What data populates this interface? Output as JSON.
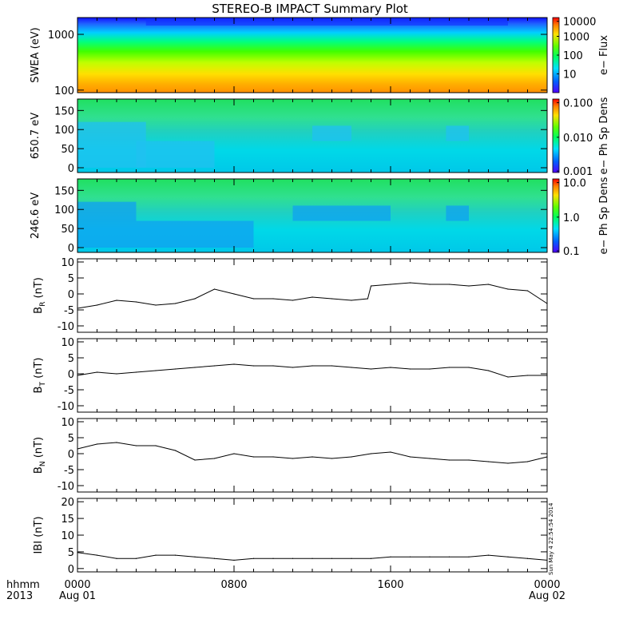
{
  "chart_data": [
    {
      "type": "heatmap",
      "title": "STEREO-B IMPACT Summary Plot",
      "ylabel": "SWEA (eV)",
      "yscale": "log",
      "ylim": [
        90,
        2000
      ],
      "yticks": [
        "1000",
        "100"
      ],
      "colorbar": {
        "label": "e− Flux",
        "scale": "log",
        "range": [
          1,
          20000
        ],
        "ticks": [
          "10000",
          "1000",
          "100",
          "10"
        ]
      },
      "rows": [
        {
          "energy": 1500,
          "flux": 3
        },
        {
          "energy": 1000,
          "flux": 25
        },
        {
          "energy": 600,
          "flux": 200
        },
        {
          "energy": 300,
          "flux": 1200
        },
        {
          "energy": 150,
          "flux": 5000
        },
        {
          "energy": 100,
          "flux": 9000
        }
      ]
    },
    {
      "type": "heatmap",
      "ylabel": "650.7 eV",
      "ylim": [
        0,
        180
      ],
      "yticks": [
        "150",
        "100",
        "50",
        "0"
      ],
      "colorbar": {
        "label": "e− Ph Sp Dens",
        "scale": "log",
        "range": [
          0.001,
          0.1
        ],
        "ticks": [
          "0.100",
          "0.010",
          "0.001"
        ]
      },
      "background": 0.01,
      "features": [
        {
          "from": "0000",
          "to": "0330",
          "pitch_min": 0,
          "pitch_max": 120,
          "value": 0.004
        },
        {
          "from": "0300",
          "to": "0700",
          "pitch_min": 0,
          "pitch_max": 70,
          "value": 0.005
        },
        {
          "from": "1200",
          "to": "1400",
          "pitch_min": 70,
          "pitch_max": 110,
          "value": 0.005
        },
        {
          "from": "1850",
          "to": "2000",
          "pitch_min": 70,
          "pitch_max": 110,
          "value": 0.004
        }
      ]
    },
    {
      "type": "heatmap",
      "ylabel": "246.6 eV",
      "ylim": [
        0,
        180
      ],
      "yticks": [
        "150",
        "100",
        "50",
        "0"
      ],
      "colorbar": {
        "label": "e− Ph Sp Dens",
        "scale": "log",
        "range": [
          0.1,
          10
        ],
        "ticks": [
          "10.0",
          "1.0",
          "0.1"
        ]
      },
      "background": 1.5,
      "features": [
        {
          "from": "0000",
          "to": "0300",
          "pitch_min": 0,
          "pitch_max": 120,
          "value": 0.5
        },
        {
          "from": "0300",
          "to": "0900",
          "pitch_min": 0,
          "pitch_max": 70,
          "value": 0.4
        },
        {
          "from": "1100",
          "to": "1600",
          "pitch_min": 70,
          "pitch_max": 110,
          "value": 0.5
        },
        {
          "from": "1850",
          "to": "2000",
          "pitch_min": 70,
          "pitch_max": 110,
          "value": 0.5
        }
      ]
    },
    {
      "type": "line",
      "ylabel": "B",
      "ylabel_sub": "R",
      "ylabel_unit": "(nT)",
      "ylim": [
        -12,
        11
      ],
      "yticks": [
        10,
        5,
        0,
        -5,
        -10
      ],
      "x": [
        "0000",
        "0100",
        "0200",
        "0300",
        "0400",
        "0500",
        "0600",
        "0700",
        "0800",
        "0900",
        "1000",
        "1100",
        "1200",
        "1300",
        "1400",
        "1450",
        "1500",
        "1600",
        "1700",
        "1800",
        "1900",
        "2000",
        "2100",
        "2200",
        "2300",
        "2400"
      ],
      "values": [
        -4.5,
        -3.5,
        -2.0,
        -2.5,
        -3.5,
        -3.0,
        -1.5,
        1.5,
        0.0,
        -1.5,
        -1.5,
        -2.0,
        -1.0,
        -1.5,
        -2.0,
        -1.5,
        2.5,
        3.0,
        3.5,
        3.0,
        3.0,
        2.5,
        3.0,
        1.5,
        1.0,
        -3.0
      ]
    },
    {
      "type": "line",
      "ylabel": "B",
      "ylabel_sub": "T",
      "ylabel_unit": "(nT)",
      "ylim": [
        -12,
        11
      ],
      "yticks": [
        10,
        5,
        0,
        -5,
        -10
      ],
      "x": [
        "0000",
        "0100",
        "0200",
        "0300",
        "0400",
        "0500",
        "0600",
        "0700",
        "0800",
        "0900",
        "1000",
        "1100",
        "1200",
        "1300",
        "1400",
        "1500",
        "1600",
        "1700",
        "1800",
        "1900",
        "2000",
        "2100",
        "2200",
        "2300",
        "2400"
      ],
      "values": [
        -0.5,
        0.5,
        0.0,
        0.5,
        1.0,
        1.5,
        2.0,
        2.5,
        3.0,
        2.5,
        2.5,
        2.0,
        2.5,
        2.5,
        2.0,
        1.5,
        2.0,
        1.5,
        1.5,
        2.0,
        2.0,
        1.0,
        -1.0,
        -0.5,
        -0.5
      ]
    },
    {
      "type": "line",
      "ylabel": "B",
      "ylabel_sub": "N",
      "ylabel_unit": "(nT)",
      "ylim": [
        -12,
        11
      ],
      "yticks": [
        10,
        5,
        0,
        -5,
        -10
      ],
      "x": [
        "0000",
        "0100",
        "0200",
        "0300",
        "0400",
        "0500",
        "0600",
        "0700",
        "0800",
        "0900",
        "1000",
        "1100",
        "1200",
        "1300",
        "1400",
        "1500",
        "1600",
        "1700",
        "1800",
        "1900",
        "2000",
        "2100",
        "2200",
        "2300",
        "2400"
      ],
      "values": [
        1.5,
        3.0,
        3.5,
        2.5,
        2.5,
        1.0,
        -2.0,
        -1.5,
        0.0,
        -1.0,
        -1.0,
        -1.5,
        -1.0,
        -1.5,
        -1.0,
        0.0,
        0.5,
        -1.0,
        -1.5,
        -2.0,
        -2.0,
        -2.5,
        -3.0,
        -2.5,
        -1.0
      ]
    },
    {
      "type": "line",
      "ylabel": "IBI",
      "ylabel_unit": "(nT)",
      "ylim": [
        -1,
        21
      ],
      "yticks": [
        20,
        15,
        10,
        5,
        0
      ],
      "x": [
        "0000",
        "0100",
        "0200",
        "0300",
        "0400",
        "0500",
        "0600",
        "0700",
        "0800",
        "0900",
        "1000",
        "1100",
        "1200",
        "1300",
        "1400",
        "1500",
        "1600",
        "1700",
        "1800",
        "1900",
        "2000",
        "2100",
        "2200",
        "2300",
        "2400"
      ],
      "values": [
        4.8,
        4.0,
        3.0,
        3.0,
        4.0,
        4.0,
        3.5,
        3.0,
        2.5,
        3.0,
        3.0,
        3.0,
        3.0,
        3.0,
        3.0,
        3.0,
        3.5,
        3.5,
        3.5,
        3.5,
        3.5,
        4.0,
        3.5,
        3.0,
        2.5
      ]
    }
  ],
  "x_axis": {
    "ticks": [
      {
        "hhmm": "0000",
        "date": "Aug 01"
      },
      {
        "hhmm": "0800",
        "date": ""
      },
      {
        "hhmm": "1600",
        "date": ""
      },
      {
        "hhmm": "0000",
        "date": "Aug 02"
      }
    ],
    "row_label": "hhmm",
    "year_label": "2013"
  },
  "timestamp": "Sun May  4 22:54:54 2014"
}
